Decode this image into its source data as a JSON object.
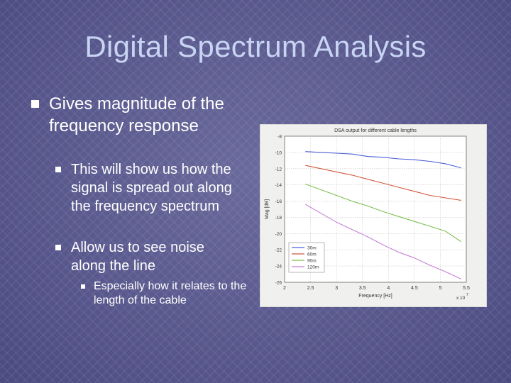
{
  "slide": {
    "title": "Digital Spectrum Analysis",
    "bullets": [
      {
        "level": 1,
        "text": "Gives magnitude of the frequency response"
      },
      {
        "level": 2,
        "text": "This will show us how the signal is spread out along the frequency spectrum"
      },
      {
        "level": 2,
        "text": "Allow us to see noise along the line"
      },
      {
        "level": 3,
        "text": "Especially how it relates to the length of the cable"
      }
    ],
    "colors": {
      "background": "#5d5c8c",
      "title": "#c7d4f2",
      "body_text": "#ffffff"
    }
  },
  "chart_data": {
    "type": "line",
    "title": "DSA output for different cable lengths",
    "xlabel": "Frequency [Hz]",
    "ylabel": "Mag [dB]",
    "x_multiplier_label": "x 10",
    "x_multiplier_exp": "7",
    "xlim": [
      2,
      5.5
    ],
    "ylim": [
      -26,
      -8
    ],
    "xticks": [
      "2",
      "2.5",
      "3",
      "3.5",
      "4",
      "4.5",
      "5",
      "5.5"
    ],
    "yticks": [
      "-8",
      "-10",
      "-12",
      "-14",
      "-16",
      "-18",
      "-20",
      "-22",
      "-24",
      "-26"
    ],
    "grid": true,
    "legend_position": "bottom-left",
    "x": [
      2.4,
      2.7,
      3.0,
      3.3,
      3.6,
      3.9,
      4.2,
      4.5,
      4.8,
      5.1,
      5.4
    ],
    "series": [
      {
        "name": "30m",
        "color": "#4a5fd6",
        "values": [
          -9.9,
          -10.0,
          -10.1,
          -10.2,
          -10.5,
          -10.6,
          -10.8,
          -10.9,
          -11.1,
          -11.4,
          -11.9
        ]
      },
      {
        "name": "60m",
        "color": "#d2573a",
        "values": [
          -11.6,
          -12.0,
          -12.4,
          -12.8,
          -13.3,
          -13.8,
          -14.3,
          -14.8,
          -15.3,
          -15.6,
          -15.9
        ]
      },
      {
        "name": "90m",
        "color": "#7cc04f",
        "values": [
          -13.9,
          -14.6,
          -15.3,
          -16.0,
          -16.6,
          -17.3,
          -17.9,
          -18.5,
          -19.1,
          -19.7,
          -21.0
        ]
      },
      {
        "name": "120m",
        "color": "#c77fd6",
        "values": [
          -16.4,
          -17.5,
          -18.6,
          -19.5,
          -20.4,
          -21.4,
          -22.3,
          -23.0,
          -23.9,
          -24.7,
          -25.6
        ]
      }
    ]
  }
}
